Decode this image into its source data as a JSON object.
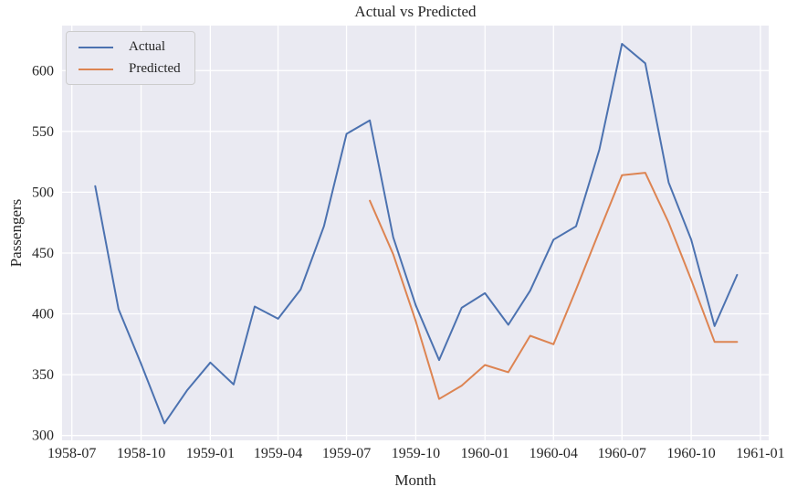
{
  "chart_data": {
    "type": "line",
    "title": "Actual vs Predicted",
    "xlabel": "Month",
    "ylabel": "Passengers",
    "grid": true,
    "legend_position": "upper left",
    "axes_background_color": "#eaeaf2",
    "grid_color": "#ffffff",
    "text_color": "#262626",
    "y_ticks": [
      300,
      350,
      400,
      450,
      500,
      550,
      600
    ],
    "ylim": [
      296,
      637
    ],
    "xlim_dates": [
      "1958-06-18",
      "1961-01-12"
    ],
    "x_tick_labels": [
      "1958-07",
      "1958-10",
      "1959-01",
      "1959-04",
      "1959-07",
      "1959-10",
      "1960-01",
      "1960-04",
      "1960-07",
      "1960-10",
      "1961-01"
    ],
    "series": [
      {
        "name": "Actual",
        "color": "#4c72b0",
        "months": [
          "1958-08",
          "1958-09",
          "1958-10",
          "1958-11",
          "1958-12",
          "1959-01",
          "1959-02",
          "1959-03",
          "1959-04",
          "1959-05",
          "1959-06",
          "1959-07",
          "1959-08",
          "1959-09",
          "1959-10",
          "1959-11",
          "1959-12",
          "1960-01",
          "1960-02",
          "1960-03",
          "1960-04",
          "1960-05",
          "1960-06",
          "1960-07",
          "1960-08",
          "1960-09",
          "1960-10",
          "1960-11",
          "1960-12"
        ],
        "values": [
          505,
          404,
          359,
          310,
          337,
          360,
          342,
          406,
          396,
          420,
          472,
          548,
          559,
          463,
          407,
          362,
          405,
          417,
          391,
          419,
          461,
          472,
          535,
          622,
          606,
          508,
          461,
          390,
          432
        ]
      },
      {
        "name": "Predicted",
        "color": "#dd8452",
        "months": [
          "1959-08",
          "1959-09",
          "1959-10",
          "1959-11",
          "1959-12",
          "1960-01",
          "1960-02",
          "1960-03",
          "1960-04",
          "1960-05",
          "1960-06",
          "1960-07",
          "1960-08",
          "1960-09",
          "1960-10",
          "1960-11",
          "1960-12"
        ],
        "values": [
          493,
          449,
          394,
          330,
          341,
          358,
          352,
          382,
          375,
          420,
          468,
          514,
          516,
          475,
          428,
          377,
          377
        ]
      }
    ]
  }
}
